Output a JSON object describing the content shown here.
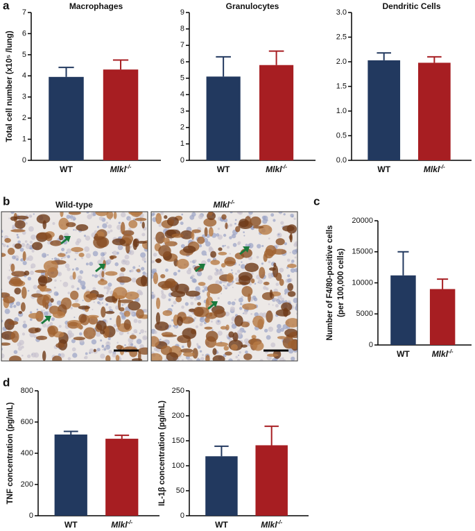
{
  "panel_labels": [
    "a",
    "b",
    "c",
    "d"
  ],
  "images": {
    "labels": [
      "Wild-type",
      "Mlkl-/-"
    ]
  },
  "chart_data": [
    {
      "type": "bar",
      "title": "Macrophages",
      "ylabel": [
        "Total cell number (x10⁵ /lung)"
      ],
      "categories": [
        "WT",
        "Mlkl-/-"
      ],
      "values": [
        3.95,
        4.3
      ],
      "errors": [
        0.45,
        0.45
      ],
      "colors": [
        "#22395f",
        "#a71e22"
      ],
      "ylim": [
        0,
        7
      ],
      "yticks": [
        0,
        1,
        2,
        3,
        4,
        5,
        6,
        7
      ]
    },
    {
      "type": "bar",
      "title": "Granulocytes",
      "categories": [
        "WT",
        "Mlkl-/-"
      ],
      "values": [
        5.1,
        5.8
      ],
      "errors": [
        1.2,
        0.85
      ],
      "colors": [
        "#22395f",
        "#a71e22"
      ],
      "ylim": [
        0,
        9
      ],
      "yticks": [
        0,
        1,
        2,
        3,
        4,
        5,
        6,
        7,
        8,
        9
      ]
    },
    {
      "type": "bar",
      "title": "Dendritic Cells",
      "categories": [
        "WT",
        "Mlkl-/-"
      ],
      "values": [
        2.03,
        1.98
      ],
      "errors": [
        0.15,
        0.12
      ],
      "colors": [
        "#22395f",
        "#a71e22"
      ],
      "ylim": [
        0,
        3
      ],
      "yticks": [
        {
          "value": 0,
          "label": "0.0"
        },
        0.5,
        {
          "value": 1,
          "label": "1.0"
        },
        1.5,
        {
          "value": 2,
          "label": "2.0"
        },
        2.5,
        {
          "value": 3,
          "label": "3.0"
        }
      ]
    },
    {
      "type": "bar",
      "ylabel": [
        "Number of F4/80-positive cells",
        "(per 100,000 cells)"
      ],
      "categories": [
        "WT",
        "Mlkl-/-"
      ],
      "values": [
        11200,
        9000
      ],
      "errors": [
        3800,
        1600
      ],
      "colors": [
        "#22395f",
        "#a71e22"
      ],
      "ylim": [
        0,
        20000
      ],
      "yticks": [
        0,
        5000,
        10000,
        15000,
        20000
      ]
    },
    {
      "type": "bar",
      "ylabel": [
        "TNF concentration (pg/mL)"
      ],
      "categories": [
        "WT",
        "Mlkl-/-"
      ],
      "values": [
        520,
        493
      ],
      "errors": [
        20,
        22
      ],
      "colors": [
        "#22395f",
        "#a71e22"
      ],
      "ylim": [
        0,
        800
      ],
      "yticks": [
        0,
        200,
        400,
        600,
        800
      ]
    },
    {
      "type": "bar",
      "ylabel": [
        "IL-1β concentration (pg/mL)"
      ],
      "categories": [
        "WT",
        "Mlkl-/-"
      ],
      "values": [
        119,
        141
      ],
      "errors": [
        20,
        38
      ],
      "colors": [
        "#22395f",
        "#a71e22"
      ],
      "ylim": [
        0,
        250
      ],
      "yticks": [
        0,
        50,
        100,
        150,
        200,
        250
      ]
    }
  ]
}
